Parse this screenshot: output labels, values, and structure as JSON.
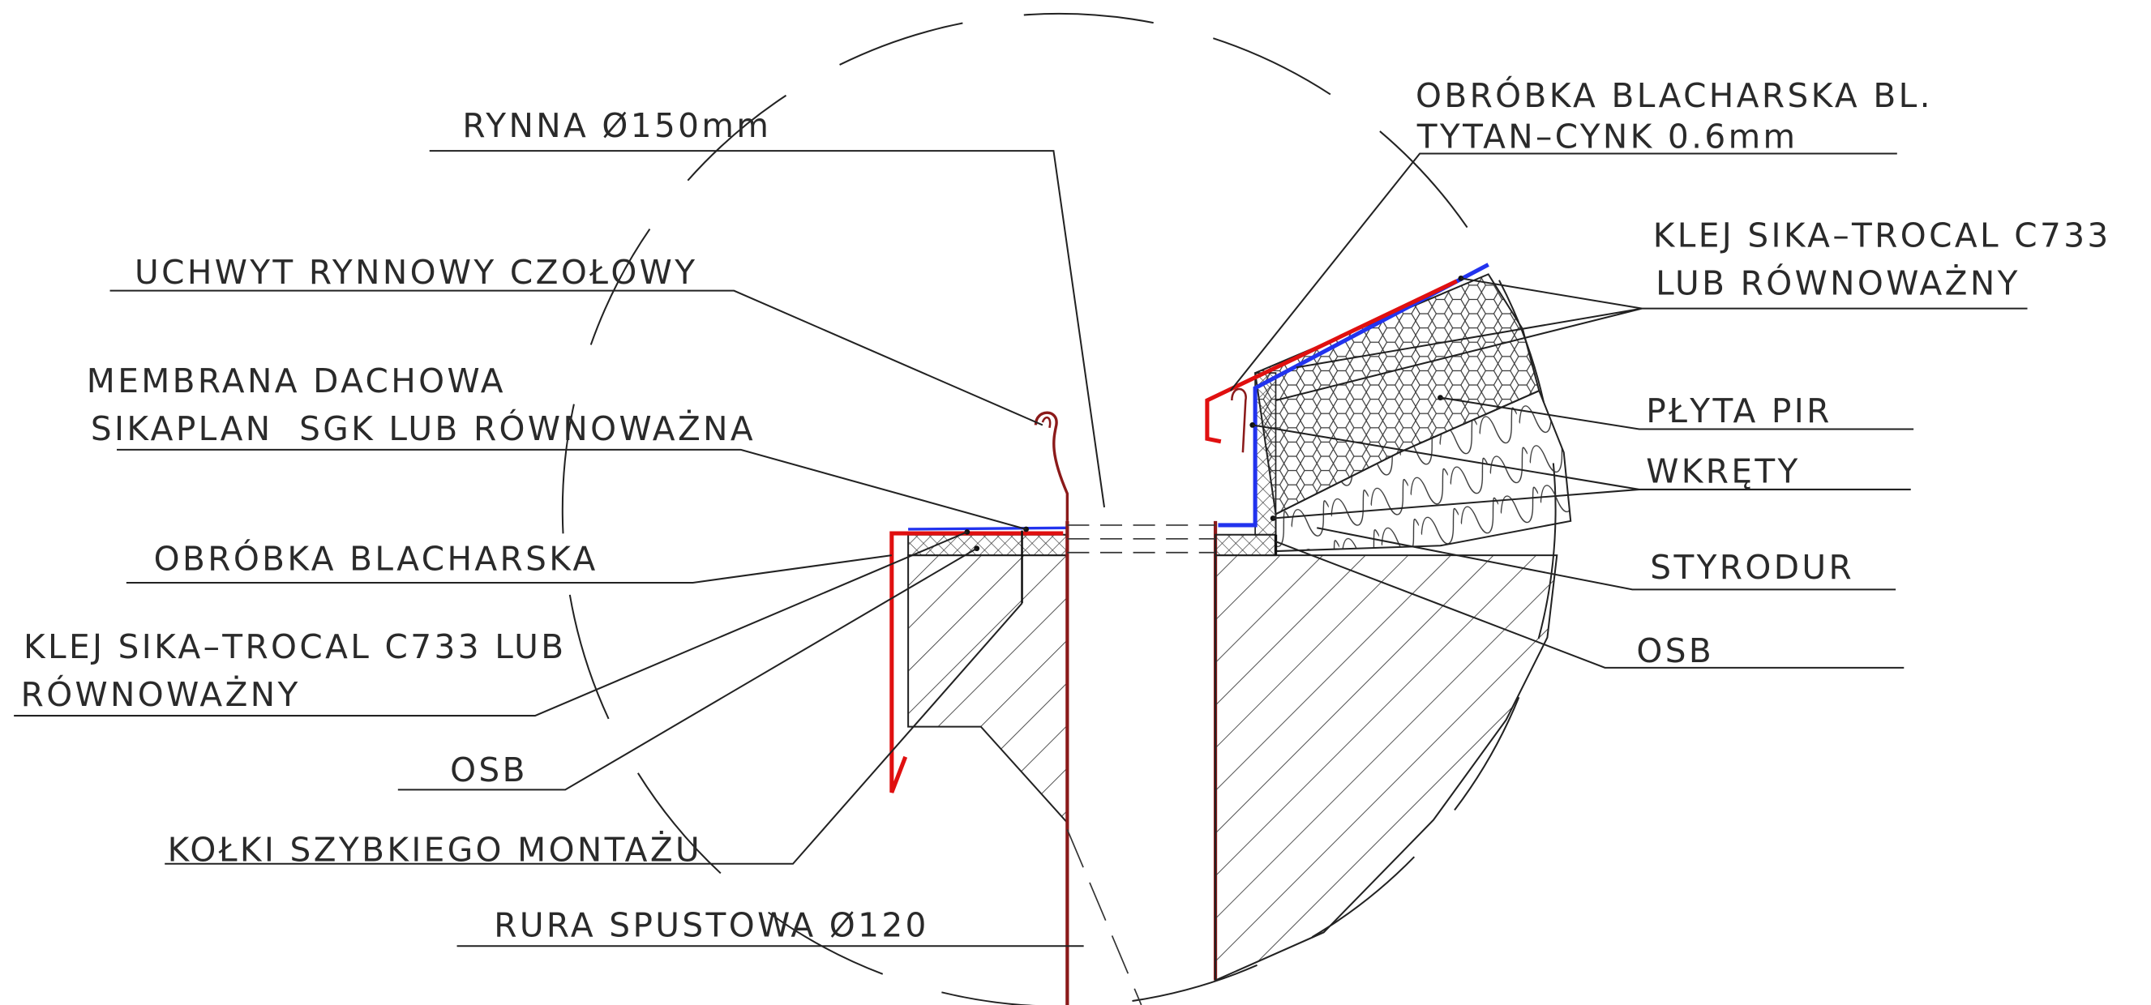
{
  "left_labels": [
    {
      "lines": [
        "RYNNA Ø150mm"
      ]
    },
    {
      "lines": [
        "UCHWYT RYNNOWY CZOŁOWY"
      ]
    },
    {
      "lines": [
        "MEMBRANA DACHOWA",
        "SIKAPLAN  SGK LUB RÓWNOWAŻNA"
      ]
    },
    {
      "lines": [
        "OBRÓBKA BLACHARSKA"
      ]
    },
    {
      "lines": [
        "KLEJ SIKA–TROCAL C733 LUB",
        "RÓWNOWAŻNY"
      ]
    },
    {
      "lines": [
        "OSB"
      ]
    },
    {
      "lines": [
        "KOŁKI SZYBKIEGO MONTAŻU"
      ]
    },
    {
      "lines": [
        "RURA SPUSTOWA Ø120"
      ]
    }
  ],
  "right_labels": [
    {
      "lines": [
        "OBRÓBKA BLACHARSKA BL.",
        "TYTAN–CYNK 0.6mm"
      ]
    },
    {
      "lines": [
        "KLEJ SIKA–TROCAL C733",
        "LUB RÓWNOWAŻNY"
      ]
    },
    {
      "lines": [
        "PŁYTA PIR"
      ]
    },
    {
      "lines": [
        "WKRĘTY"
      ]
    },
    {
      "lines": [
        "STYRODUR"
      ]
    },
    {
      "lines": [
        "OSB"
      ]
    }
  ]
}
